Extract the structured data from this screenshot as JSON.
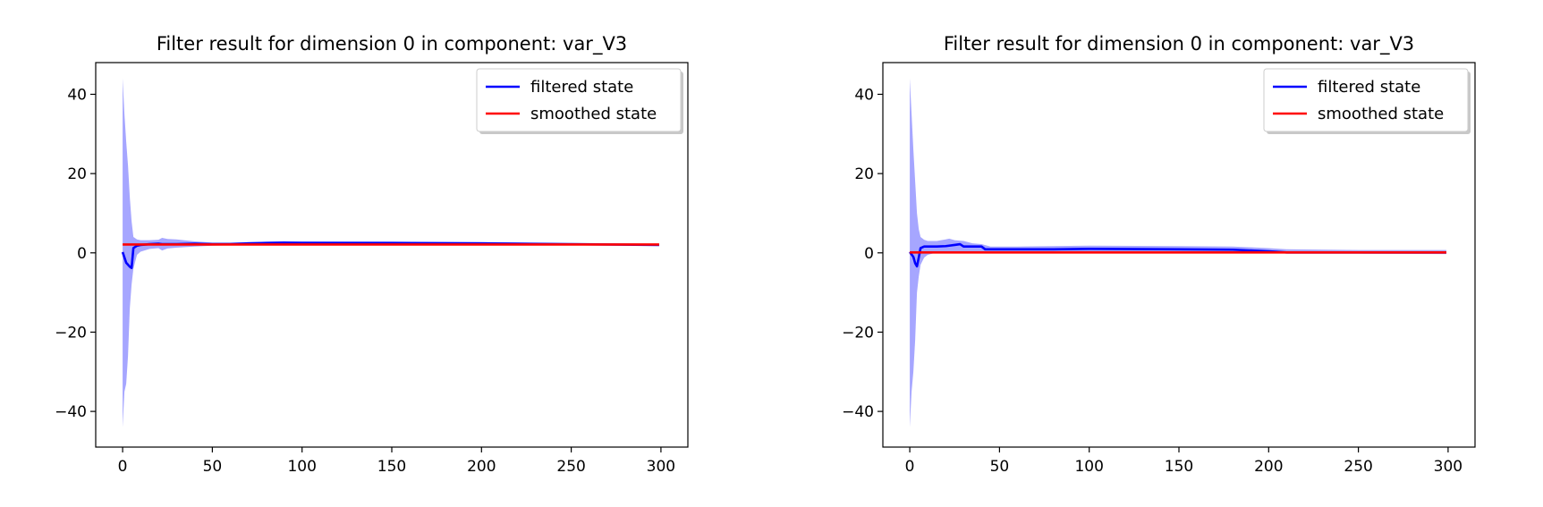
{
  "chart_data": [
    {
      "type": "line",
      "title": "Filter result for dimension 0 in component: var_V3",
      "xlabel": "",
      "ylabel": "",
      "xlim": [
        -15,
        315
      ],
      "ylim": [
        -49,
        48
      ],
      "xticks": [
        0,
        50,
        100,
        150,
        200,
        250,
        300
      ],
      "yticks": [
        -40,
        -20,
        0,
        20,
        40
      ],
      "grid": false,
      "legend": "top-right",
      "band": {
        "color": "#8888ff",
        "x": [
          0,
          1,
          2,
          3,
          4,
          5,
          6,
          8,
          10,
          15,
          20,
          22,
          25,
          30,
          40,
          50,
          60,
          80,
          100,
          150,
          200,
          250,
          299
        ],
        "upper": [
          44,
          35,
          28,
          22,
          14,
          8,
          4,
          3.4,
          3.2,
          3.2,
          3.3,
          3.8,
          3.5,
          3.4,
          2.9,
          2.6,
          2.6,
          2.8,
          2.9,
          2.8,
          2.7,
          2.4,
          2.2
        ],
        "lower": [
          -44,
          -35,
          -33,
          -26,
          -14,
          -8,
          -4,
          -0.5,
          0.3,
          1.0,
          1.2,
          0.6,
          1.1,
          1.3,
          1.6,
          1.8,
          1.9,
          2.1,
          2.2,
          2.2,
          2.2,
          2.0,
          1.9
        ]
      },
      "series": [
        {
          "name": "filtered state",
          "color": "#0000ff",
          "x": [
            0,
            2,
            4,
            5,
            6,
            8,
            10,
            15,
            20,
            22,
            25,
            30,
            40,
            50,
            60,
            70,
            80,
            90,
            100,
            150,
            200,
            250,
            299
          ],
          "y": [
            0.2,
            -2.5,
            -3.5,
            -3.8,
            1.2,
            1.8,
            2.0,
            2.2,
            2.3,
            2.2,
            2.2,
            2.2,
            2.3,
            2.2,
            2.2,
            2.4,
            2.5,
            2.6,
            2.5,
            2.5,
            2.4,
            2.2,
            2.0
          ]
        },
        {
          "name": "smoothed state",
          "color": "#ff0000",
          "x": [
            0,
            299
          ],
          "y": [
            2.1,
            2.1
          ]
        }
      ]
    },
    {
      "type": "line",
      "title": "Filter result for dimension 0 in component: var_V3",
      "xlabel": "",
      "ylabel": "",
      "xlim": [
        -15,
        315
      ],
      "ylim": [
        -49,
        48
      ],
      "xticks": [
        0,
        50,
        100,
        150,
        200,
        250,
        300
      ],
      "yticks": [
        -40,
        -20,
        0,
        20,
        40
      ],
      "grid": false,
      "legend": "top-right",
      "band": {
        "color": "#8888ff",
        "x": [
          0,
          1,
          2,
          3,
          4,
          5,
          6,
          8,
          10,
          15,
          20,
          22,
          25,
          30,
          35,
          40,
          45,
          60,
          100,
          150,
          180,
          200,
          210,
          250,
          299
        ],
        "upper": [
          44,
          35,
          26,
          18,
          10,
          6,
          4,
          3.3,
          3.0,
          3.0,
          3.4,
          3.6,
          3.2,
          3.0,
          2.4,
          2.2,
          1.6,
          1.6,
          1.8,
          1.7,
          1.6,
          1.2,
          0.9,
          0.7,
          0.7
        ],
        "lower": [
          -44,
          -35,
          -30,
          -22,
          -10,
          -6,
          -3,
          -1.2,
          -0.5,
          0.1,
          0.3,
          0.2,
          0.4,
          0.4,
          0.3,
          0.2,
          0.2,
          0.2,
          0.3,
          0.3,
          0.2,
          0.0,
          -0.2,
          -0.2,
          -0.3
        ]
      },
      "series": [
        {
          "name": "filtered state",
          "color": "#0000ff",
          "x": [
            0,
            2,
            3,
            4,
            5,
            6,
            8,
            10,
            15,
            20,
            25,
            28,
            30,
            40,
            42,
            50,
            60,
            80,
            100,
            150,
            180,
            200,
            210,
            250,
            299
          ],
          "y": [
            0.2,
            -1.0,
            -2.6,
            -3.4,
            -1.2,
            1.2,
            1.6,
            1.6,
            1.6,
            1.7,
            2.0,
            2.2,
            1.6,
            1.6,
            0.9,
            0.9,
            0.9,
            0.9,
            1.0,
            0.9,
            0.8,
            0.4,
            0.1,
            0.1,
            0.1
          ]
        },
        {
          "name": "smoothed state",
          "color": "#ff0000",
          "x": [
            0,
            299
          ],
          "y": [
            0.1,
            0.1
          ]
        }
      ]
    }
  ]
}
